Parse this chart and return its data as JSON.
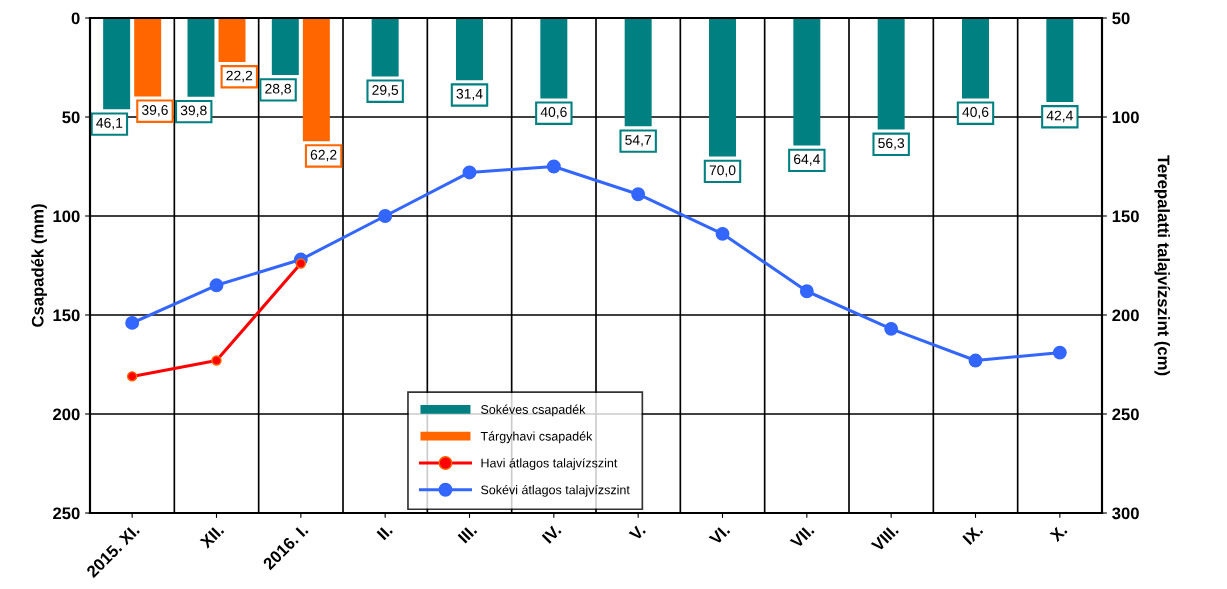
{
  "chart_data": {
    "type": "bar",
    "categories": [
      "2015. XI.",
      "XII.",
      "2016. I.",
      "II.",
      "III.",
      "IV.",
      "V.",
      "VI.",
      "VII.",
      "VIII.",
      "IX.",
      "X."
    ],
    "ylabel": "Csapadék (mm)",
    "y2label": "Terepalatti talajvízszint (cm)",
    "ylim": [
      250,
      0
    ],
    "yticks": [
      0,
      50,
      100,
      150,
      200,
      250
    ],
    "y2lim": [
      300,
      50
    ],
    "y2ticks": [
      50,
      100,
      150,
      200,
      250,
      300
    ],
    "grid": true,
    "legend": "bottom",
    "series": [
      {
        "name": "Sokéves csapadék",
        "color": "#008080",
        "values": [
          46.1,
          39.8,
          28.8,
          29.5,
          31.4,
          40.6,
          54.7,
          70.0,
          64.4,
          56.3,
          40.6,
          42.4
        ],
        "value_labels": [
          "46,1",
          "39,8",
          "28,8",
          "29,5",
          "31,4",
          "40,6",
          "54,7",
          "70,0",
          "64,4",
          "56,3",
          "40,6",
          "42,4"
        ]
      },
      {
        "name": "Tárgyhavi csapadék",
        "color": "#ff6600",
        "values": [
          39.6,
          22.2,
          62.2,
          null,
          null,
          null,
          null,
          null,
          null,
          null,
          null,
          null
        ],
        "value_labels": [
          "39,6",
          "22,2",
          "62,2",
          null,
          null,
          null,
          null,
          null,
          null,
          null,
          null,
          null
        ]
      },
      {
        "name": "Havi átlagos talajvízszint",
        "type": "line",
        "axis": "y2",
        "color": "#ff0000",
        "marker": "circle",
        "values": [
          231,
          223,
          174,
          null,
          null,
          null,
          null,
          null,
          null,
          null,
          null,
          null
        ]
      },
      {
        "name": "Sokévi átlagos talajvízszint",
        "type": "line",
        "axis": "y2",
        "color": "#3366ff",
        "marker": "circle",
        "values": [
          204,
          185,
          172,
          150,
          128,
          125,
          139,
          159,
          188,
          207,
          223,
          219
        ]
      }
    ]
  }
}
